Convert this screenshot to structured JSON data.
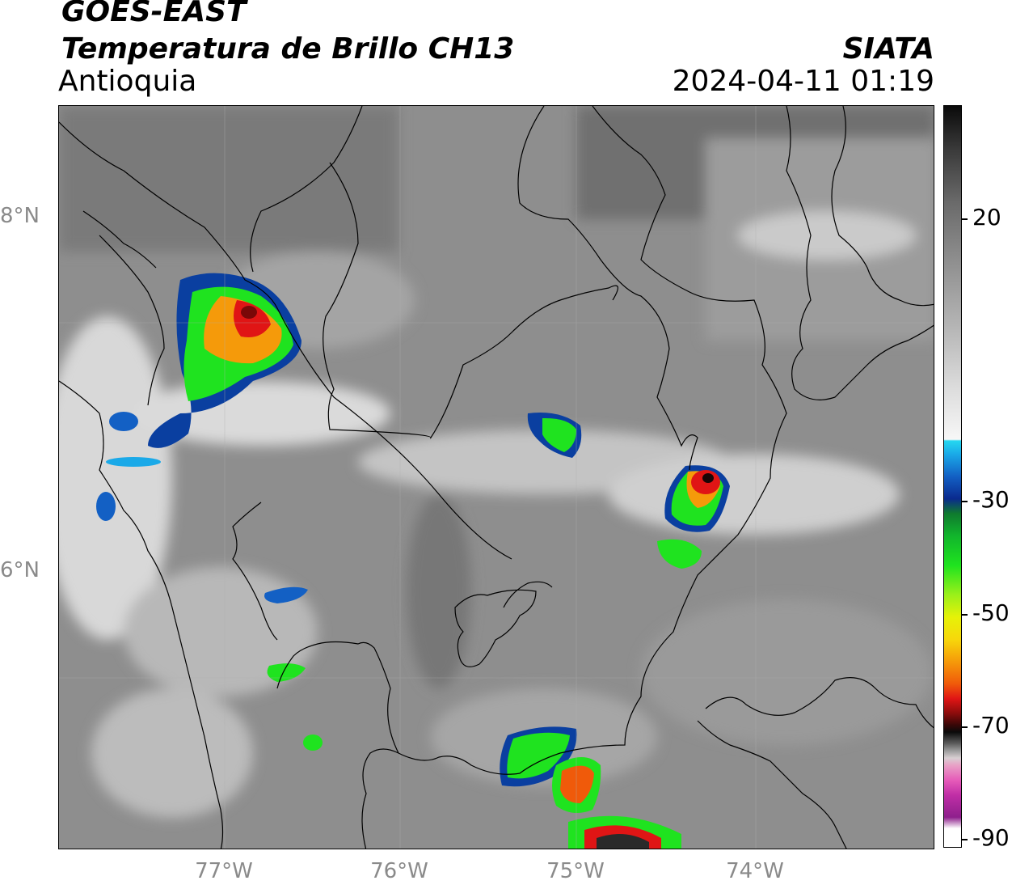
{
  "header": {
    "satellite": "GOES-EAST",
    "product": "Temperatura de Brillo CH13",
    "region": "Antioquia",
    "organization": "SIATA",
    "timestamp": "2024-04-11 01:19"
  },
  "axes": {
    "lat_labels": [
      "8°N",
      "6°N"
    ],
    "lon_labels": [
      "77°W",
      "76°W",
      "75°W",
      "74°W"
    ]
  },
  "colorbar": {
    "labels": [
      "20",
      "-30",
      "-50",
      "-70",
      "-90"
    ],
    "colors": {
      "cold_black": "#0a0a0a",
      "warm_gray": "#8c8c8c",
      "white": "#f7f7f7",
      "cyan": "#25d7f0",
      "blue": "#0a2a8e",
      "green": "#1fe31f",
      "yellow": "#e6f208",
      "orange": "#f59a0a",
      "red": "#e01515",
      "magenta": "#c02ea6"
    }
  }
}
